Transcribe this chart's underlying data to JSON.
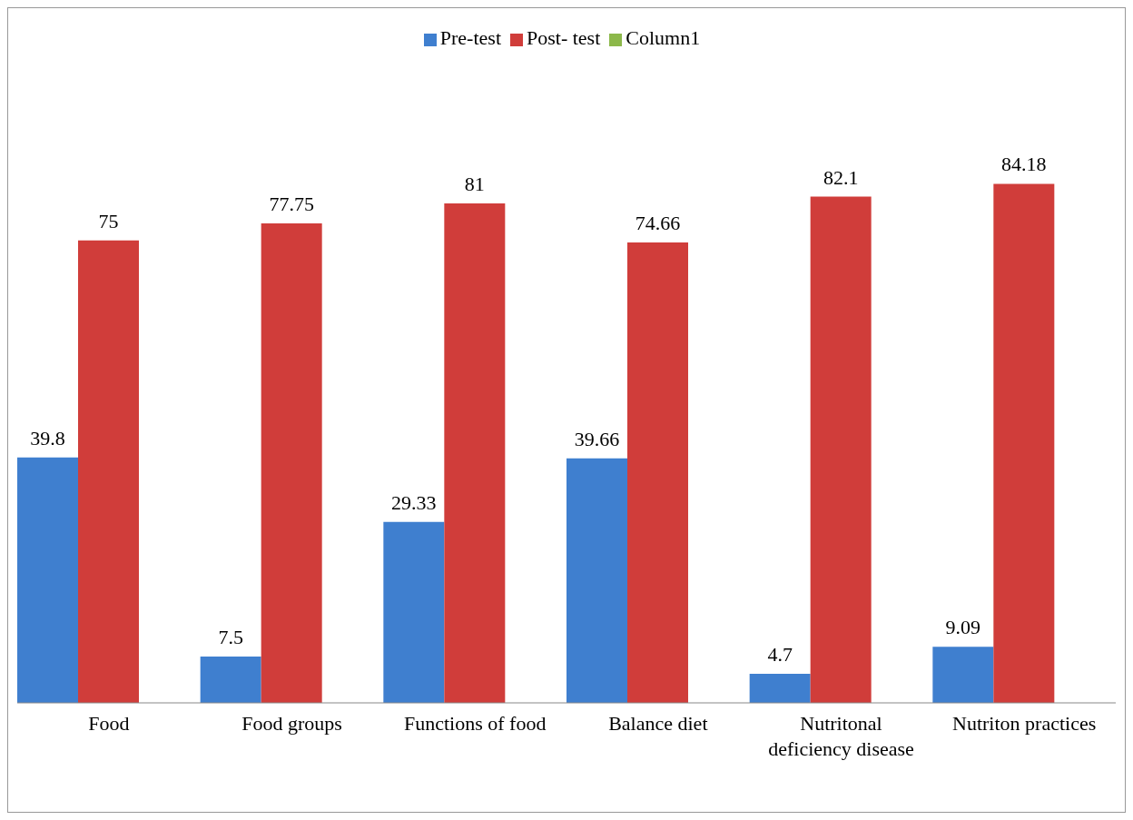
{
  "chart_data": {
    "type": "bar",
    "categories": [
      "Food",
      "Food groups",
      "Functions of food",
      "Balance diet",
      "Nutritonal deficiency disease",
      "Nutriton practices"
    ],
    "series": [
      {
        "name": "Pre-test",
        "color": "#3f7fcf",
        "values": [
          39.8,
          7.5,
          29.33,
          39.66,
          4.7,
          9.09
        ]
      },
      {
        "name": "Post- test",
        "color": "#d03d3a",
        "values": [
          75,
          77.75,
          81,
          74.66,
          82.1,
          84.18
        ]
      },
      {
        "name": "Column1",
        "color": "#8cb84a",
        "values": [
          null,
          null,
          null,
          null,
          null,
          null
        ]
      }
    ],
    "data_labels": true,
    "legend": "top",
    "grid": false,
    "tick_labels": "x"
  }
}
